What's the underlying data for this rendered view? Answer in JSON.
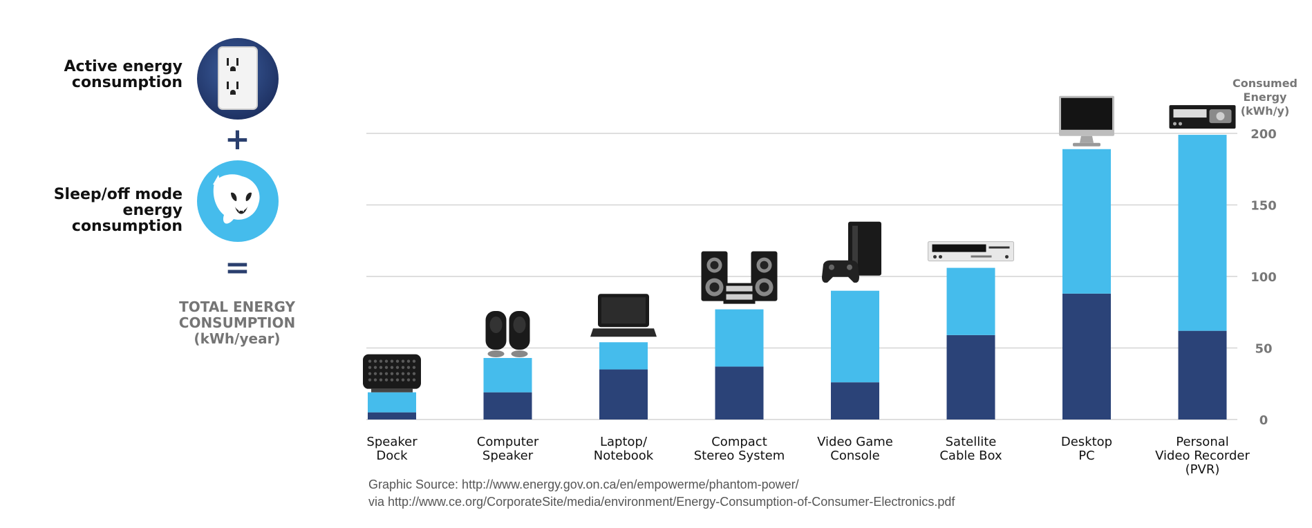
{
  "legend": {
    "active_label": "Active energy consumption",
    "sleep_label": "Sleep/off mode energy consumption",
    "plus": "+",
    "equals": "=",
    "total_line1": "TOTAL ENERGY",
    "total_line2": "CONSUMPTION",
    "total_line3": "(kWh/year)",
    "active_icon": "electrical-outlet-icon",
    "sleep_icon": "vampire-ghost-icon",
    "colors": {
      "active": "#2b4378",
      "sleep": "#45bcec",
      "gridline": "#d4d4d4"
    }
  },
  "chart_data": {
    "type": "bar",
    "stacked": true,
    "categories": [
      "Speaker Dock",
      "Computer Speaker",
      "Laptop/ Notebook",
      "Compact Stereo System",
      "Video Game Console",
      "Satellite Cable Box",
      "Desktop PC",
      "Personal Video Recorder (PVR)"
    ],
    "category_lines": [
      [
        "Speaker",
        "Dock"
      ],
      [
        "Computer",
        "Speaker"
      ],
      [
        "Laptop/",
        "Notebook"
      ],
      [
        "Compact",
        "Stereo System"
      ],
      [
        "Video Game",
        "Console"
      ],
      [
        "Satellite",
        "Cable Box"
      ],
      [
        "Desktop",
        "PC"
      ],
      [
        "Personal",
        "Video Recorder",
        "(PVR)"
      ]
    ],
    "series": [
      {
        "name": "Active energy consumption",
        "color": "#2b4378",
        "values": [
          5,
          19,
          35,
          37,
          26,
          59,
          88,
          62
        ]
      },
      {
        "name": "Sleep/off mode energy consumption",
        "color": "#45bcec",
        "values": [
          14,
          24,
          19,
          40,
          64,
          47,
          101,
          137
        ]
      }
    ],
    "totals": [
      19,
      43,
      54,
      77,
      90,
      106,
      189,
      199
    ],
    "ylabel_lines": [
      "Consumed",
      "Energy",
      "(kWh/y)"
    ],
    "ylim": [
      0,
      200
    ],
    "yticks": [
      0,
      50,
      100,
      150,
      200
    ],
    "grid": true,
    "device_icons": [
      "speaker-dock-icon",
      "computer-speakers-icon",
      "laptop-icon",
      "stereo-system-icon",
      "game-console-icon",
      "cable-box-icon",
      "desktop-monitor-icon",
      "pvr-recorder-icon"
    ]
  },
  "source": {
    "line1": "Graphic Source: http://www.energy.gov.on.ca/en/empowerme/phantom-power/",
    "line2": "via http://www.ce.org/CorporateSite/media/environment/Energy-Consumption-of-Consumer-Electronics.pdf"
  }
}
